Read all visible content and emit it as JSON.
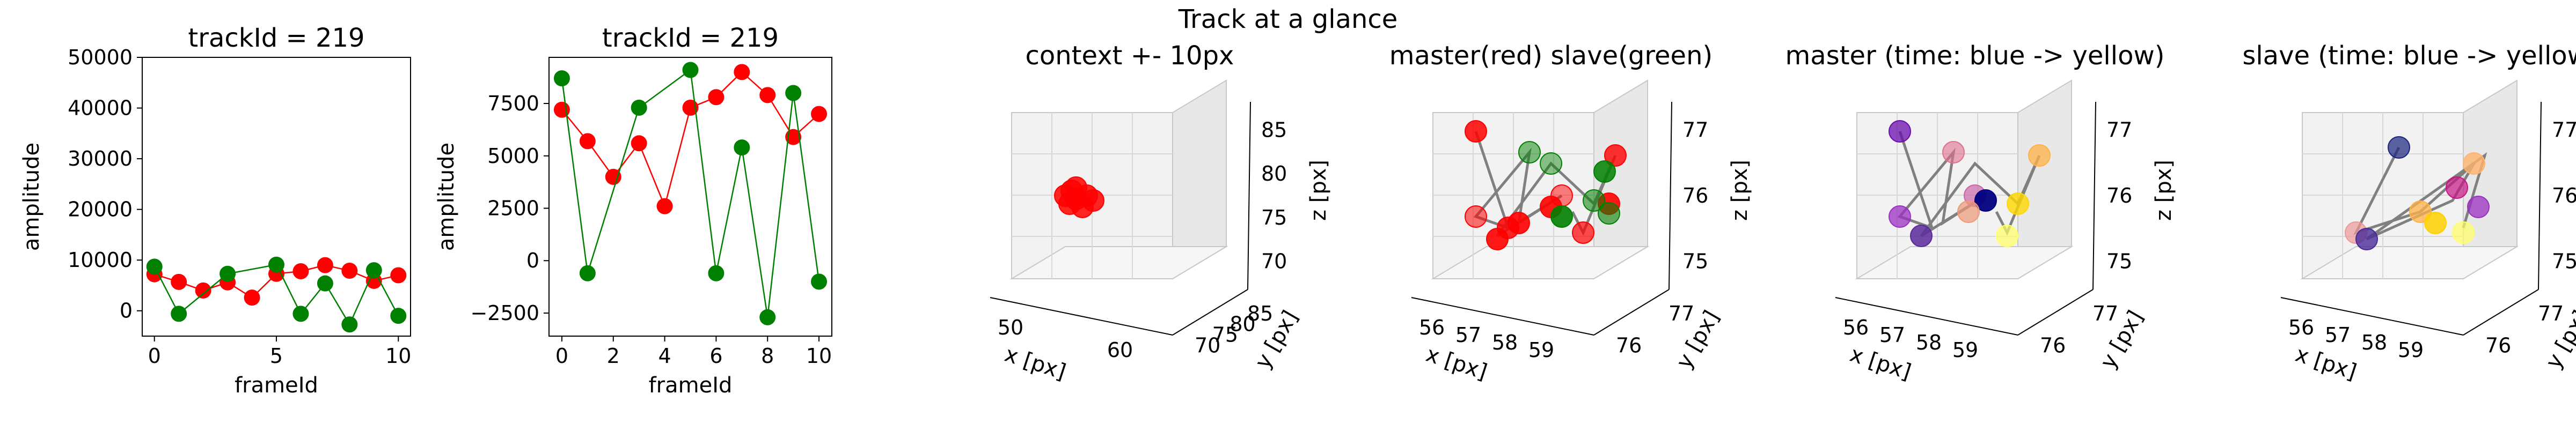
{
  "figure": {
    "suptitle": "Track at a glance"
  },
  "colors": {
    "master": "#ff0000",
    "slave": "#008000",
    "connector": "#808080"
  },
  "chart_data": [
    {
      "type": "line",
      "title": "trackId = 219",
      "xlabel": "frameId",
      "ylabel": "amplitude",
      "xlim": [
        -0.5,
        10.5
      ],
      "ylim": [
        -5000,
        50000
      ],
      "xticks": [
        "0",
        "5",
        "10"
      ],
      "yticks": [
        "0",
        "10000",
        "20000",
        "30000",
        "40000",
        "50000"
      ],
      "series": [
        {
          "color": "#ff0000",
          "x": [
            0,
            1,
            2,
            3,
            4,
            5,
            6,
            7,
            8,
            9,
            10
          ],
          "y": [
            7200,
            5700,
            4000,
            5600,
            2600,
            7300,
            7800,
            9000,
            7900,
            5900,
            7000
          ]
        },
        {
          "color": "#008000",
          "x": [
            0,
            1,
            3,
            5,
            6,
            7,
            8,
            9,
            10
          ],
          "y": [
            8700,
            -600,
            7300,
            9100,
            -600,
            5400,
            -2700,
            8000,
            -1000
          ]
        }
      ]
    },
    {
      "type": "line",
      "title": "trackId = 219",
      "xlabel": "frameId",
      "ylabel": "amplitude",
      "xlim": [
        -0.5,
        10.5
      ],
      "ylim": [
        -3600,
        9700
      ],
      "xticks": [
        "0",
        "2",
        "4",
        "6",
        "8",
        "10"
      ],
      "yticks": [
        "−2500",
        "0",
        "2500",
        "5000",
        "7500"
      ],
      "series": [
        {
          "color": "#ff0000",
          "x": [
            0,
            1,
            2,
            3,
            4,
            5,
            6,
            7,
            8,
            9,
            10
          ],
          "y": [
            7200,
            5700,
            4000,
            5600,
            2600,
            7300,
            7800,
            9000,
            7900,
            5900,
            7000
          ]
        },
        {
          "color": "#008000",
          "x": [
            0,
            1,
            3,
            5,
            6,
            7,
            8,
            9,
            10
          ],
          "y": [
            8700,
            -600,
            7300,
            9100,
            -600,
            5400,
            -2700,
            8000,
            -1000
          ]
        }
      ]
    },
    {
      "type": "scatter",
      "title": "context +- 10px",
      "xlabel": "x [px]",
      "ylabel": "y [px]",
      "zlabel": "z [px]",
      "xticks": [
        "50",
        "60"
      ],
      "yticks": [
        "70",
        "75",
        "80",
        "85"
      ],
      "zticks": [
        "70",
        "75",
        "80",
        "85"
      ],
      "points": [
        [
          0.25,
          0.55
        ],
        [
          0.3,
          0.5
        ],
        [
          0.35,
          0.55
        ],
        [
          0.27,
          0.6
        ],
        [
          0.33,
          0.62
        ],
        [
          0.3,
          0.57
        ],
        [
          0.38,
          0.58
        ],
        [
          0.28,
          0.52
        ]
      ],
      "point_color": "#ff0000"
    },
    {
      "type": "scatter",
      "title": "master(red) slave(green)",
      "xlabel": "x [px]",
      "ylabel": "y [px]",
      "zlabel": "z [px]",
      "xticks": [
        "56",
        "57",
        "58",
        "59"
      ],
      "yticks": [
        "76",
        "77"
      ],
      "zticks": [
        "75",
        "76",
        "77"
      ],
      "path": [
        [
          0.2,
          0.15
        ],
        [
          0.35,
          0.75
        ],
        [
          0.2,
          0.68
        ],
        [
          0.45,
          0.28
        ],
        [
          0.4,
          0.72
        ],
        [
          0.6,
          0.55
        ],
        [
          0.3,
          0.8
        ],
        [
          0.55,
          0.35
        ],
        [
          0.75,
          0.6
        ],
        [
          0.85,
          0.3
        ],
        [
          0.7,
          0.78
        ],
        [
          0.65,
          0.65
        ]
      ],
      "points": [
        {
          "p": [
            0.2,
            0.15
          ],
          "color": "#ff0000",
          "alpha": 0.85
        },
        {
          "p": [
            0.35,
            0.75
          ],
          "color": "#ff0000",
          "alpha": 0.85
        },
        {
          "p": [
            0.2,
            0.68
          ],
          "color": "#ff0000",
          "alpha": 0.55
        },
        {
          "p": [
            0.4,
            0.72
          ],
          "color": "#ff0000",
          "alpha": 0.9
        },
        {
          "p": [
            0.6,
            0.55
          ],
          "color": "#ff0000",
          "alpha": 0.5
        },
        {
          "p": [
            0.55,
            0.62
          ],
          "color": "#ff0000",
          "alpha": 0.9
        },
        {
          "p": [
            0.7,
            0.78
          ],
          "color": "#ff0000",
          "alpha": 0.7
        },
        {
          "p": [
            0.82,
            0.6
          ],
          "color": "#ff0000",
          "alpha": 0.9
        },
        {
          "p": [
            0.85,
            0.3
          ],
          "color": "#ff0000",
          "alpha": 0.8
        },
        {
          "p": [
            0.3,
            0.82
          ],
          "color": "#ff0000",
          "alpha": 0.9
        },
        {
          "p": [
            0.45,
            0.28
          ],
          "color": "#008000",
          "alpha": 0.5
        },
        {
          "p": [
            0.55,
            0.35
          ],
          "color": "#008000",
          "alpha": 0.45
        },
        {
          "p": [
            0.75,
            0.58
          ],
          "color": "#008000",
          "alpha": 0.55
        },
        {
          "p": [
            0.6,
            0.68
          ],
          "color": "#008000",
          "alpha": 0.9
        },
        {
          "p": [
            0.8,
            0.4
          ],
          "color": "#008000",
          "alpha": 0.85
        },
        {
          "p": [
            0.82,
            0.66
          ],
          "color": "#008000",
          "alpha": 0.6
        }
      ]
    },
    {
      "type": "scatter",
      "title": "master (time: blue -> yellow)",
      "xlabel": "x [px]",
      "ylabel": "y [px]",
      "zlabel": "z [px]",
      "xticks": [
        "56",
        "57",
        "58",
        "59"
      ],
      "yticks": [
        "76",
        "77"
      ],
      "zticks": [
        "75",
        "76",
        "77"
      ],
      "path": [
        [
          0.2,
          0.15
        ],
        [
          0.35,
          0.75
        ],
        [
          0.2,
          0.68
        ],
        [
          0.45,
          0.28
        ],
        [
          0.4,
          0.72
        ],
        [
          0.6,
          0.55
        ],
        [
          0.3,
          0.8
        ],
        [
          0.55,
          0.35
        ],
        [
          0.75,
          0.6
        ],
        [
          0.85,
          0.3
        ],
        [
          0.7,
          0.78
        ],
        [
          0.65,
          0.65
        ]
      ],
      "points": [
        {
          "p": [
            0.2,
            0.15
          ],
          "color": "#6a0dad",
          "alpha": 0.75
        },
        {
          "p": [
            0.45,
            0.28
          ],
          "color": "#e07090",
          "alpha": 0.6
        },
        {
          "p": [
            0.2,
            0.68
          ],
          "color": "#9b30c0",
          "alpha": 0.75
        },
        {
          "p": [
            0.3,
            0.8
          ],
          "color": "#5a2a9a",
          "alpha": 0.85
        },
        {
          "p": [
            0.55,
            0.55
          ],
          "color": "#cc66aa",
          "alpha": 0.7
        },
        {
          "p": [
            0.6,
            0.58
          ],
          "color": "#000080",
          "alpha": 0.95
        },
        {
          "p": [
            0.52,
            0.65
          ],
          "color": "#ee9977",
          "alpha": 0.7
        },
        {
          "p": [
            0.75,
            0.6
          ],
          "color": "#ffd700",
          "alpha": 0.8
        },
        {
          "p": [
            0.85,
            0.3
          ],
          "color": "#ffb347",
          "alpha": 0.75
        },
        {
          "p": [
            0.7,
            0.8
          ],
          "color": "#ffff66",
          "alpha": 0.7
        }
      ]
    },
    {
      "type": "scatter",
      "title": "slave (time: blue -> yellow)",
      "xlabel": "x [px]",
      "ylabel": "y [px]",
      "zlabel": "z [px]",
      "xticks": [
        "56",
        "57",
        "58",
        "59"
      ],
      "yticks": [
        "76",
        "77"
      ],
      "zticks": [
        "75",
        "76",
        "77"
      ],
      "path": [
        [
          0.45,
          0.25
        ],
        [
          0.25,
          0.78
        ],
        [
          0.55,
          0.65
        ],
        [
          0.8,
          0.35
        ],
        [
          0.7,
          0.58
        ],
        [
          0.3,
          0.82
        ],
        [
          0.85,
          0.3
        ],
        [
          0.75,
          0.75
        ]
      ],
      "points": [
        {
          "p": [
            0.45,
            0.25
          ],
          "color": "#1a237e",
          "alpha": 0.7
        },
        {
          "p": [
            0.25,
            0.78
          ],
          "color": "#ee9999",
          "alpha": 0.7
        },
        {
          "p": [
            0.3,
            0.82
          ],
          "color": "#4a2a9a",
          "alpha": 0.8
        },
        {
          "p": [
            0.55,
            0.65
          ],
          "color": "#ffb347",
          "alpha": 0.75
        },
        {
          "p": [
            0.62,
            0.72
          ],
          "color": "#ffd000",
          "alpha": 0.85
        },
        {
          "p": [
            0.8,
            0.35
          ],
          "color": "#ffb36b",
          "alpha": 0.8
        },
        {
          "p": [
            0.72,
            0.5
          ],
          "color": "#c71585",
          "alpha": 0.7
        },
        {
          "p": [
            0.82,
            0.62
          ],
          "color": "#9b30c0",
          "alpha": 0.75
        },
        {
          "p": [
            0.75,
            0.78
          ],
          "color": "#ffff66",
          "alpha": 0.7
        }
      ]
    }
  ]
}
